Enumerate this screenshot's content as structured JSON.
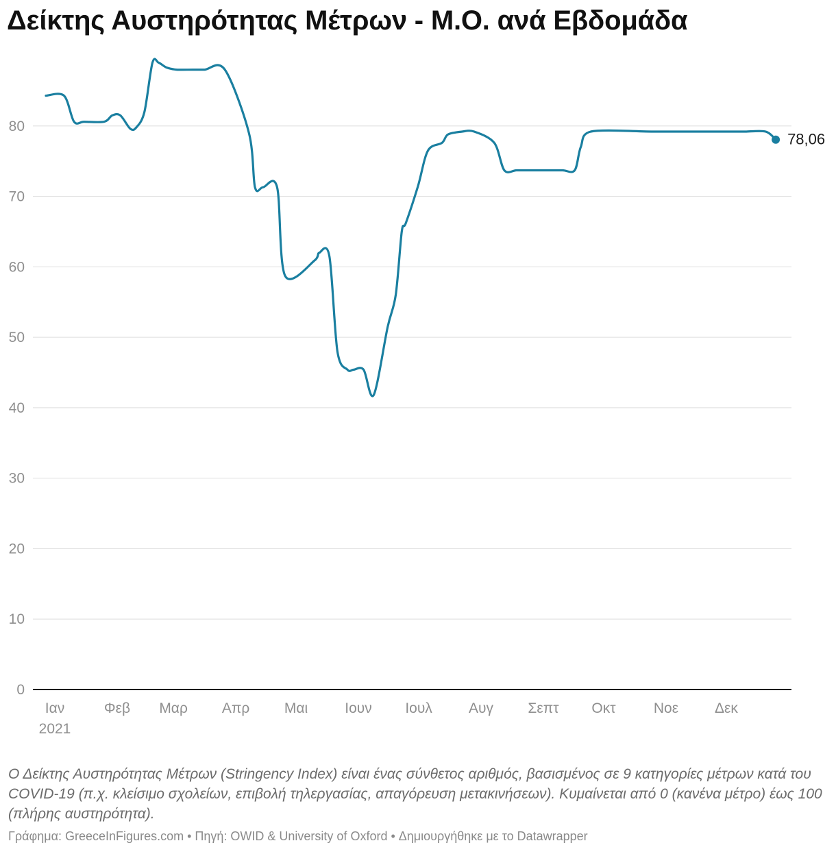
{
  "title": "Δείκτης Αυστηρότητας Μέτρων - Μ.Ο. ανά Εβδομάδα",
  "description": "Ο Δείκτης Αυστηρότητας Μέτρων (Stringency Index) είναι ένας σύνθετος αριθμός, βασισμένος σε 9 κατηγορίες μέτρων κατά του COVID-19 (π.χ. κλείσιμο σχολείων, επιβολή τηλεργασίας, απαγόρευση μετακινήσεων). Κυμαίνεται από 0 (κανένα μέτρο) έως 100 (πλήρης αυστηρότητα).",
  "footer": "Γράφημα: GreeceInFigures.com • Πηγή: OWID & University of Oxford • Δημιουργήθηκε με το Datawrapper",
  "colors": {
    "line": "#1a7fa0",
    "grid": "#e3e3e3",
    "axis": "#111111",
    "tick_text": "#8f8f8f"
  },
  "chart_data": {
    "type": "line",
    "title": "Δείκτης Αυστηρότητας Μέτρων - Μ.Ο. ανά Εβδομάδα",
    "xlabel": "",
    "ylabel": "",
    "ylim": [
      0,
      90
    ],
    "yticks": [
      0,
      10,
      20,
      30,
      40,
      50,
      60,
      70,
      80
    ],
    "grid": true,
    "x_tick_labels": [
      {
        "label": "Ιαν",
        "sublabel": "2021",
        "date": "2021-01-01"
      },
      {
        "label": "Φεβ",
        "date": "2021-02-01"
      },
      {
        "label": "Μαρ",
        "date": "2021-03-01"
      },
      {
        "label": "Απρ",
        "date": "2021-04-01"
      },
      {
        "label": "Μαι",
        "date": "2021-05-01"
      },
      {
        "label": "Ιουν",
        "date": "2021-06-01"
      },
      {
        "label": "Ιουλ",
        "date": "2021-07-01"
      },
      {
        "label": "Αυγ",
        "date": "2021-08-01"
      },
      {
        "label": "Σεπτ",
        "date": "2021-09-01"
      },
      {
        "label": "Οκτ",
        "date": "2021-10-01"
      },
      {
        "label": "Νοε",
        "date": "2021-11-01"
      },
      {
        "label": "Δεκ",
        "date": "2021-12-01"
      }
    ],
    "series": [
      {
        "end_label": "78,06",
        "x": [
          "2021-01-01",
          "2021-01-10",
          "2021-01-15",
          "2021-01-20",
          "2021-01-30",
          "2021-02-03",
          "2021-02-07",
          "2021-02-12",
          "2021-02-15",
          "2021-02-19",
          "2021-02-23",
          "2021-02-26",
          "2021-03-02",
          "2021-03-07",
          "2021-03-15",
          "2021-03-21",
          "2021-03-31",
          "2021-04-12",
          "2021-04-15",
          "2021-04-19",
          "2021-04-26",
          "2021-04-30",
          "2021-05-15",
          "2021-05-17",
          "2021-05-22",
          "2021-05-26",
          "2021-05-31",
          "2021-06-03",
          "2021-06-08",
          "2021-06-13",
          "2021-06-20",
          "2021-06-24",
          "2021-06-27",
          "2021-06-29",
          "2021-07-05",
          "2021-07-10",
          "2021-07-17",
          "2021-07-20",
          "2021-07-27",
          "2021-08-02",
          "2021-08-12",
          "2021-08-17",
          "2021-08-23",
          "2021-08-29",
          "2021-09-03",
          "2021-09-08",
          "2021-09-15",
          "2021-09-21",
          "2021-09-24",
          "2021-09-29",
          "2021-10-31",
          "2021-11-30",
          "2021-12-05",
          "2021-12-08",
          "2021-12-11",
          "2021-12-15",
          "2021-12-25",
          "2021-12-30"
        ],
        "y": [
          84.3,
          84.3,
          80.6,
          80.6,
          80.6,
          81.5,
          81.5,
          79.6,
          79.8,
          82.0,
          89.0,
          89.0,
          88.3,
          88.0,
          88.0,
          88.0,
          88.0,
          79.0,
          71.3,
          71.3,
          71.3,
          58.7,
          61.0,
          62.0,
          61.5,
          48.0,
          45.4,
          45.4,
          45.4,
          41.8,
          51.5,
          56.0,
          65.0,
          66.2,
          71.4,
          76.5,
          77.6,
          78.8,
          79.2,
          79.2,
          77.6,
          73.7,
          73.7,
          73.7,
          73.7,
          73.7,
          73.7,
          73.7,
          77.0,
          79.2,
          79.2,
          79.2,
          79.2,
          79.2,
          79.2,
          79.2,
          79.2,
          78.06
        ]
      }
    ]
  }
}
